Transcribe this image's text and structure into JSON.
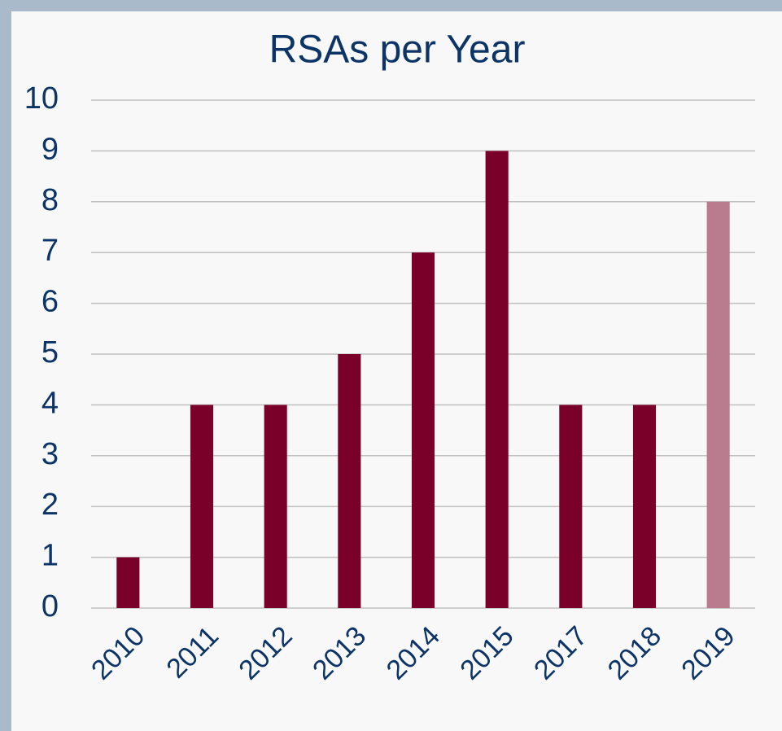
{
  "chart_data": {
    "type": "bar",
    "title": "RSAs per Year",
    "categories": [
      "2010",
      "2011",
      "2012",
      "2013",
      "2014",
      "2015",
      "2017",
      "2018",
      "2019"
    ],
    "values": [
      1,
      4,
      4,
      5,
      7,
      9,
      4,
      4,
      8
    ],
    "colors": [
      "#7a0029",
      "#7a0029",
      "#7a0029",
      "#7a0029",
      "#7a0029",
      "#7a0029",
      "#7a0029",
      "#7a0029",
      "#b97b8e"
    ],
    "ylim": [
      0,
      10
    ],
    "yticks": [
      0,
      1,
      2,
      3,
      4,
      5,
      6,
      7,
      8,
      9,
      10
    ],
    "grid": true
  }
}
